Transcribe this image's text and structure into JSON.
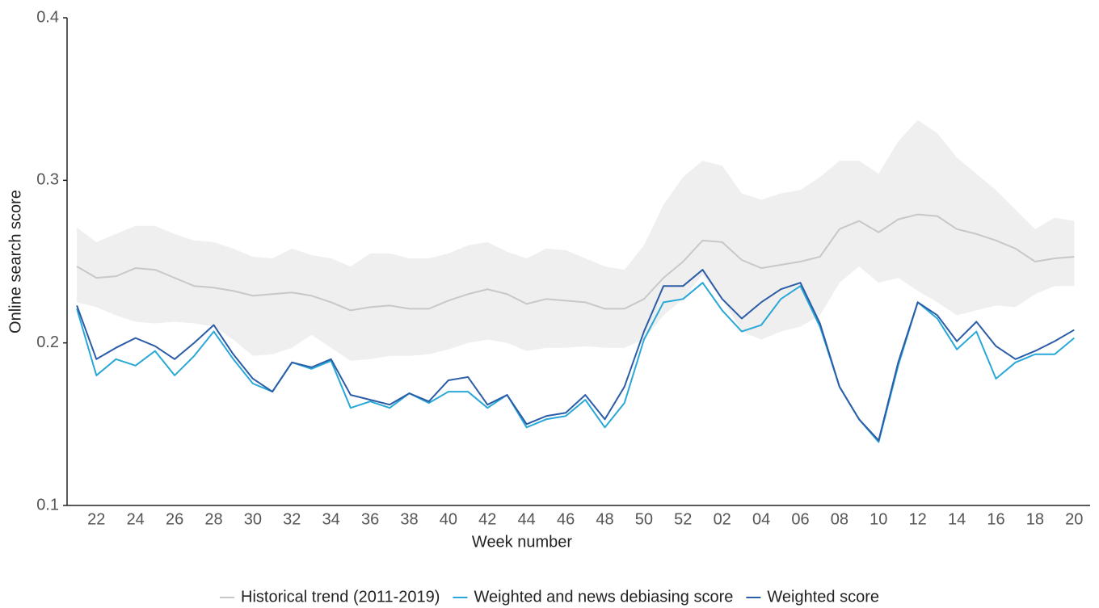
{
  "chart_data": {
    "type": "line",
    "x_label": "Week number",
    "y_label": "Online search score",
    "categories": [
      null,
      "22",
      null,
      "24",
      null,
      "26",
      null,
      "28",
      null,
      "30",
      null,
      "32",
      null,
      "34",
      null,
      "36",
      null,
      "38",
      null,
      "40",
      null,
      "42",
      null,
      "44",
      null,
      "46",
      null,
      "48",
      null,
      "50",
      null,
      "52",
      null,
      "02",
      null,
      "04",
      null,
      "06",
      null,
      "08",
      null,
      "10",
      null,
      "12",
      null,
      "14",
      null,
      "16",
      null,
      "18",
      null,
      "20"
    ],
    "ylim": [
      0.1,
      0.4
    ],
    "yticks": [
      0.1,
      0.2,
      0.3,
      0.4
    ],
    "band": {
      "color": "#efefef",
      "upper": [
        0.271,
        0.262,
        0.267,
        0.272,
        0.272,
        0.267,
        0.263,
        0.262,
        0.258,
        0.253,
        0.252,
        0.258,
        0.254,
        0.252,
        0.247,
        0.255,
        0.255,
        0.252,
        0.252,
        0.255,
        0.26,
        0.262,
        0.256,
        0.252,
        0.258,
        0.257,
        0.252,
        0.247,
        0.245,
        0.26,
        0.285,
        0.302,
        0.312,
        0.309,
        0.292,
        0.288,
        0.292,
        0.294,
        0.302,
        0.312,
        0.312,
        0.304,
        0.324,
        0.337,
        0.329,
        0.314,
        0.304,
        0.294,
        0.282,
        0.27,
        0.277,
        0.275
      ],
      "lower": [
        0.225,
        0.222,
        0.217,
        0.213,
        0.212,
        0.213,
        0.212,
        0.21,
        0.202,
        0.192,
        0.193,
        0.197,
        0.205,
        0.197,
        0.189,
        0.19,
        0.192,
        0.192,
        0.193,
        0.196,
        0.2,
        0.202,
        0.2,
        0.195,
        0.197,
        0.197,
        0.198,
        0.197,
        0.197,
        0.202,
        0.217,
        0.227,
        0.242,
        0.227,
        0.207,
        0.202,
        0.207,
        0.21,
        0.217,
        0.237,
        0.247,
        0.237,
        0.24,
        0.232,
        0.225,
        0.217,
        0.22,
        0.223,
        0.222,
        0.23,
        0.235,
        0.235
      ]
    },
    "series": [
      {
        "name": "Historical trend (2011-2019)",
        "color": "#c8c8c8",
        "values": [
          0.247,
          0.24,
          0.241,
          0.246,
          0.245,
          0.24,
          0.235,
          0.234,
          0.232,
          0.229,
          0.23,
          0.231,
          0.229,
          0.225,
          0.22,
          0.222,
          0.223,
          0.221,
          0.221,
          0.226,
          0.23,
          0.233,
          0.23,
          0.224,
          0.227,
          0.226,
          0.225,
          0.221,
          0.221,
          0.227,
          0.24,
          0.25,
          0.263,
          0.262,
          0.251,
          0.246,
          0.248,
          0.25,
          0.253,
          0.27,
          0.275,
          0.268,
          0.276,
          0.279,
          0.278,
          0.27,
          0.267,
          0.263,
          0.258,
          0.25,
          0.252,
          0.253
        ]
      },
      {
        "name": "Weighted and news debiasing score",
        "color": "#29a8d8",
        "values": [
          0.221,
          0.18,
          0.19,
          0.186,
          0.195,
          0.18,
          0.192,
          0.207,
          0.19,
          0.175,
          0.17,
          0.188,
          0.184,
          0.189,
          0.16,
          0.164,
          0.16,
          0.169,
          0.163,
          0.17,
          0.17,
          0.16,
          0.168,
          0.148,
          0.153,
          0.155,
          0.165,
          0.148,
          0.163,
          0.202,
          0.225,
          0.227,
          0.237,
          0.22,
          0.207,
          0.211,
          0.227,
          0.235,
          0.21,
          0.173,
          0.153,
          0.139,
          0.186,
          0.225,
          0.215,
          0.196,
          0.207,
          0.178,
          0.188,
          0.193,
          0.193,
          0.203
        ]
      },
      {
        "name": "Weighted score",
        "color": "#2b5ca6",
        "values": [
          0.223,
          0.19,
          0.197,
          0.203,
          0.198,
          0.19,
          0.2,
          0.211,
          0.193,
          0.178,
          0.17,
          0.188,
          0.185,
          0.19,
          0.168,
          0.165,
          0.162,
          0.169,
          0.164,
          0.177,
          0.179,
          0.162,
          0.168,
          0.15,
          0.155,
          0.157,
          0.168,
          0.153,
          0.173,
          0.207,
          0.235,
          0.235,
          0.245,
          0.227,
          0.215,
          0.225,
          0.233,
          0.237,
          0.212,
          0.173,
          0.153,
          0.14,
          0.188,
          0.225,
          0.217,
          0.201,
          0.213,
          0.198,
          0.19,
          0.195,
          0.201,
          0.208
        ]
      }
    ]
  }
}
